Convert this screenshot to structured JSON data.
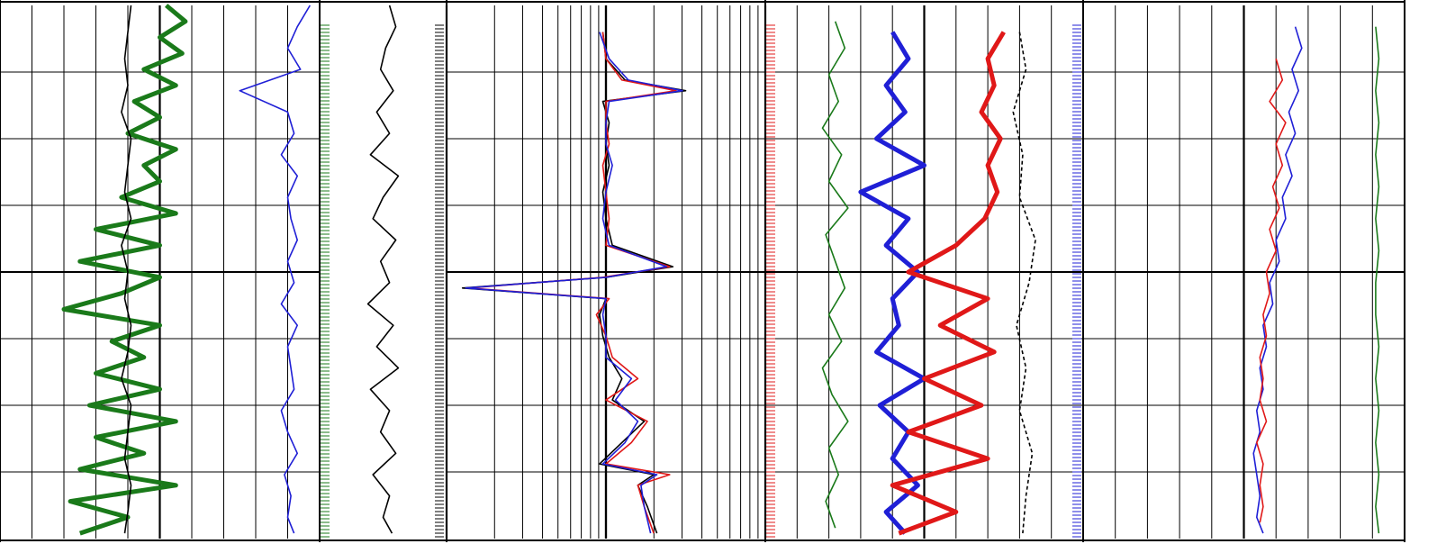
{
  "chart_data": {
    "type": "line",
    "title": "",
    "depth_range": [
      0,
      100
    ],
    "tracks": [
      {
        "name": "",
        "scale": "linear",
        "grid": true,
        "curves": [
          {
            "color": "#1a7a1a",
            "role": "green-thick",
            "depth": [
              0,
              3,
              6,
              9,
              12,
              15,
              18,
              21,
              24,
              27,
              30,
              33,
              36,
              39,
              42,
              45,
              48,
              51,
              54,
              57,
              60,
              63,
              66,
              69,
              72,
              75,
              78,
              81,
              84,
              87,
              90,
              93,
              96,
              99
            ],
            "value": [
              0.52,
              0.58,
              0.5,
              0.57,
              0.45,
              0.55,
              0.42,
              0.5,
              0.4,
              0.55,
              0.45,
              0.5,
              0.38,
              0.55,
              0.3,
              0.5,
              0.25,
              0.5,
              0.38,
              0.2,
              0.5,
              0.35,
              0.45,
              0.3,
              0.5,
              0.28,
              0.55,
              0.3,
              0.45,
              0.25,
              0.55,
              0.22,
              0.4,
              0.25
            ]
          },
          {
            "color": "#000000",
            "role": "black-thin",
            "depth": [
              0,
              5,
              10,
              15,
              20,
              25,
              30,
              35,
              40,
              45,
              50,
              55,
              60,
              65,
              70,
              75,
              80,
              85,
              90,
              95,
              99
            ],
            "value": [
              0.41,
              0.4,
              0.39,
              0.4,
              0.38,
              0.41,
              0.4,
              0.39,
              0.41,
              0.38,
              0.4,
              0.39,
              0.41,
              0.4,
              0.38,
              0.41,
              0.4,
              0.39,
              0.41,
              0.4,
              0.39
            ]
          },
          {
            "color": "#1f1fd6",
            "role": "blue-thin",
            "depth": [
              0,
              4,
              8,
              12,
              16,
              20,
              24,
              28,
              32,
              36,
              40,
              44,
              48,
              52,
              56,
              60,
              64,
              68,
              72,
              76,
              80,
              84,
              88,
              92,
              96,
              99
            ],
            "value": [
              0.97,
              0.93,
              0.9,
              0.94,
              0.75,
              0.9,
              0.92,
              0.88,
              0.93,
              0.9,
              0.91,
              0.93,
              0.9,
              0.92,
              0.88,
              0.93,
              0.9,
              0.91,
              0.92,
              0.88,
              0.9,
              0.93,
              0.89,
              0.91,
              0.9,
              0.92
            ]
          }
        ]
      },
      {
        "name": "",
        "scale": "linear",
        "grid": false,
        "curves": [
          {
            "color": "#000000",
            "role": "black-thin",
            "depth": [
              0,
              4,
              8,
              12,
              16,
              20,
              24,
              28,
              32,
              36,
              40,
              44,
              48,
              52,
              56,
              60,
              64,
              68,
              72,
              76,
              80,
              84,
              88,
              92,
              96,
              99
            ],
            "value": [
              0.55,
              0.6,
              0.52,
              0.48,
              0.58,
              0.45,
              0.55,
              0.4,
              0.62,
              0.5,
              0.42,
              0.6,
              0.48,
              0.55,
              0.38,
              0.58,
              0.45,
              0.62,
              0.4,
              0.55,
              0.48,
              0.6,
              0.42,
              0.55,
              0.5,
              0.57
            ]
          }
        ]
      },
      {
        "name": "",
        "scale": "log",
        "grid": true,
        "curves": [
          {
            "color": "#000000",
            "role": "black-thin",
            "depth": [
              5,
              10,
              14,
              16,
              18,
              22,
              26,
              30,
              35,
              40,
              45,
              49,
              51,
              53,
              55,
              58,
              62,
              66,
              70,
              74,
              78,
              82,
              86,
              88,
              90,
              94,
              99
            ],
            "value": [
              0.49,
              0.5,
              0.56,
              0.75,
              0.49,
              0.51,
              0.5,
              0.51,
              0.49,
              0.5,
              0.52,
              0.71,
              0.5,
              0.05,
              0.5,
              0.48,
              0.49,
              0.51,
              0.55,
              0.52,
              0.62,
              0.55,
              0.48,
              0.65,
              0.6,
              0.63,
              0.66
            ]
          },
          {
            "color": "#e01818",
            "role": "red-thin",
            "depth": [
              5,
              10,
              14,
              16,
              18,
              22,
              26,
              30,
              35,
              40,
              45,
              49,
              51,
              53,
              55,
              58,
              62,
              66,
              70,
              74,
              78,
              82,
              86,
              88,
              90,
              94,
              99
            ],
            "value": [
              0.49,
              0.5,
              0.55,
              0.72,
              0.5,
              0.5,
              0.51,
              0.49,
              0.5,
              0.51,
              0.5,
              0.7,
              0.49,
              0.07,
              0.51,
              0.47,
              0.5,
              0.52,
              0.6,
              0.5,
              0.63,
              0.58,
              0.5,
              0.7,
              0.6,
              0.62,
              0.65
            ]
          },
          {
            "color": "#1f1fd6",
            "role": "blue-thin",
            "depth": [
              5,
              10,
              14,
              16,
              18,
              22,
              26,
              30,
              35,
              40,
              45,
              49,
              51,
              53,
              55,
              58,
              62,
              66,
              70,
              74,
              78,
              82,
              86,
              88,
              90,
              94,
              99
            ],
            "value": [
              0.48,
              0.51,
              0.57,
              0.74,
              0.51,
              0.5,
              0.5,
              0.52,
              0.5,
              0.49,
              0.51,
              0.69,
              0.5,
              0.06,
              0.5,
              0.49,
              0.5,
              0.5,
              0.58,
              0.53,
              0.6,
              0.56,
              0.49,
              0.66,
              0.61,
              0.62,
              0.64
            ]
          }
        ]
      },
      {
        "name": "",
        "scale": "linear",
        "grid": true,
        "curves": [
          {
            "color": "#1a7a1a",
            "role": "green-thin",
            "depth": [
              3,
              8,
              13,
              18,
              23,
              28,
              33,
              38,
              43,
              48,
              53,
              58,
              63,
              68,
              73,
              78,
              83,
              88,
              93,
              98
            ],
            "value": [
              0.22,
              0.25,
              0.2,
              0.23,
              0.18,
              0.24,
              0.2,
              0.26,
              0.19,
              0.22,
              0.25,
              0.2,
              0.24,
              0.18,
              0.21,
              0.26,
              0.2,
              0.23,
              0.19,
              0.22
            ]
          },
          {
            "color": "#1f1fd6",
            "role": "blue-thick",
            "depth": [
              5,
              10,
              15,
              20,
              25,
              30,
              35,
              40,
              45,
              50,
              55,
              60,
              65,
              70,
              75,
              80,
              85,
              90,
              95,
              99
            ],
            "value": [
              0.4,
              0.45,
              0.38,
              0.44,
              0.35,
              0.5,
              0.3,
              0.45,
              0.38,
              0.48,
              0.4,
              0.42,
              0.35,
              0.5,
              0.36,
              0.45,
              0.4,
              0.48,
              0.38,
              0.44
            ]
          },
          {
            "color": "#e01818",
            "role": "red-thick",
            "depth": [
              5,
              10,
              15,
              20,
              25,
              30,
              35,
              40,
              45,
              50,
              55,
              60,
              65,
              70,
              75,
              80,
              85,
              90,
              95,
              99
            ],
            "value": [
              0.75,
              0.7,
              0.72,
              0.68,
              0.74,
              0.7,
              0.73,
              0.69,
              0.6,
              0.45,
              0.7,
              0.55,
              0.72,
              0.5,
              0.68,
              0.45,
              0.7,
              0.4,
              0.6,
              0.42
            ]
          },
          {
            "color": "#000000",
            "role": "black-dashed",
            "depth": [
              5,
              12,
              20,
              28,
              36,
              44,
              52,
              60,
              68,
              76,
              84,
              92,
              99
            ],
            "value": [
              0.8,
              0.82,
              0.78,
              0.81,
              0.8,
              0.85,
              0.83,
              0.79,
              0.82,
              0.8,
              0.84,
              0.82,
              0.81
            ]
          }
        ]
      },
      {
        "name": "",
        "scale": "linear",
        "grid": true,
        "curves": [
          {
            "color": "#1f1fd6",
            "role": "blue-thin",
            "depth": [
              4,
              8,
              12,
              16,
              20,
              24,
              28,
              32,
              36,
              40,
              44,
              48,
              52,
              56,
              60,
              64,
              68,
              72,
              76,
              80,
              84,
              88,
              92,
              96,
              99
            ],
            "value": [
              0.66,
              0.68,
              0.65,
              0.67,
              0.64,
              0.66,
              0.63,
              0.65,
              0.62,
              0.63,
              0.6,
              0.61,
              0.58,
              0.59,
              0.56,
              0.57,
              0.55,
              0.56,
              0.54,
              0.55,
              0.53,
              0.54,
              0.55,
              0.54,
              0.56
            ]
          },
          {
            "color": "#e01818",
            "role": "red-thin",
            "depth": [
              10,
              14,
              18,
              22,
              26,
              30,
              34,
              38,
              42,
              46,
              50,
              54,
              58,
              62,
              66,
              70,
              74,
              78,
              82,
              86,
              90,
              94,
              97
            ],
            "value": [
              0.6,
              0.62,
              0.58,
              0.63,
              0.6,
              0.62,
              0.59,
              0.61,
              0.58,
              0.6,
              0.57,
              0.58,
              0.56,
              0.57,
              0.55,
              0.56,
              0.55,
              0.57,
              0.54,
              0.56,
              0.55,
              0.56,
              0.55
            ]
          },
          {
            "color": "#1a7a1a",
            "role": "green-thin",
            "depth": [
              4,
              10,
              16,
              22,
              28,
              34,
              40,
              46,
              52,
              58,
              64,
              70,
              76,
              82,
              88,
              94,
              99
            ],
            "value": [
              0.91,
              0.92,
              0.91,
              0.92,
              0.91,
              0.92,
              0.91,
              0.92,
              0.91,
              0.91,
              0.92,
              0.91,
              0.92,
              0.91,
              0.92,
              0.91,
              0.92
            ]
          }
        ]
      }
    ]
  }
}
